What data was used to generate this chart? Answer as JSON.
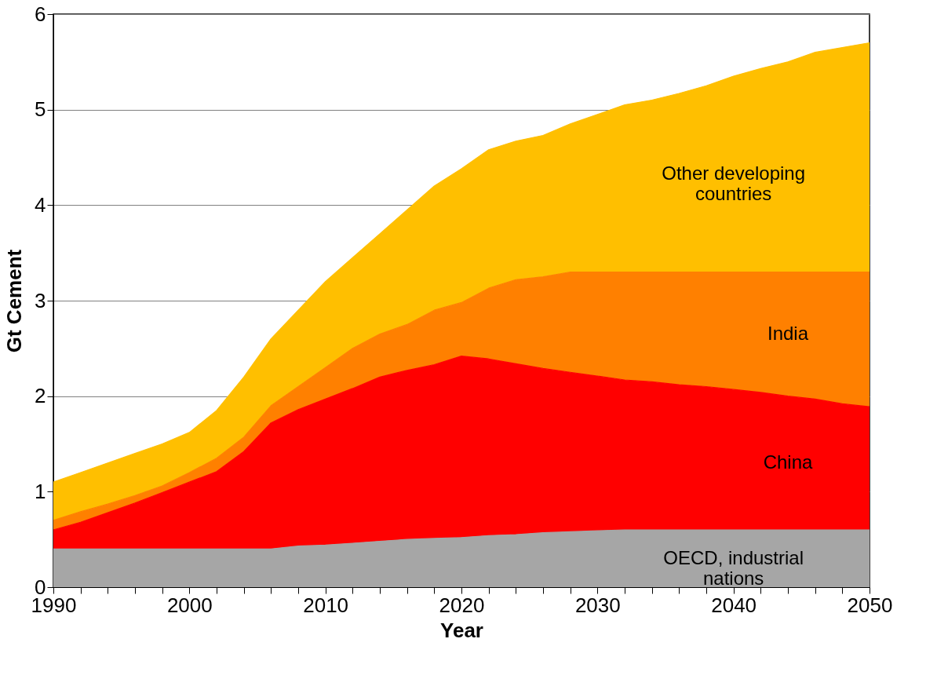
{
  "chart_data": {
    "type": "area",
    "stacked": true,
    "xlabel": "Year",
    "ylabel": "Gt Cement",
    "x": [
      1990,
      1992,
      1994,
      1996,
      1998,
      2000,
      2002,
      2004,
      2006,
      2008,
      2010,
      2012,
      2014,
      2016,
      2018,
      2020,
      2022,
      2024,
      2026,
      2028,
      2030,
      2032,
      2034,
      2036,
      2038,
      2040,
      2042,
      2044,
      2046,
      2048,
      2050
    ],
    "series": [
      {
        "name": "OECD, industrial nations",
        "color": "#a6a6a6",
        "values": [
          0.4,
          0.4,
          0.4,
          0.4,
          0.4,
          0.4,
          0.4,
          0.4,
          0.4,
          0.43,
          0.44,
          0.46,
          0.48,
          0.5,
          0.51,
          0.52,
          0.54,
          0.55,
          0.57,
          0.58,
          0.59,
          0.6,
          0.6,
          0.6,
          0.6,
          0.6,
          0.6,
          0.6,
          0.6,
          0.6,
          0.6
        ]
      },
      {
        "name": "China",
        "color": "#ff0000",
        "values": [
          0.2,
          0.28,
          0.38,
          0.48,
          0.59,
          0.7,
          0.81,
          1.02,
          1.32,
          1.43,
          1.53,
          1.62,
          1.72,
          1.77,
          1.82,
          1.9,
          1.85,
          1.79,
          1.72,
          1.67,
          1.62,
          1.57,
          1.55,
          1.52,
          1.5,
          1.47,
          1.44,
          1.4,
          1.37,
          1.32,
          1.29
        ]
      },
      {
        "name": "India",
        "color": "#ff8000",
        "values": [
          0.1,
          0.11,
          0.09,
          0.08,
          0.07,
          0.1,
          0.14,
          0.15,
          0.18,
          0.24,
          0.33,
          0.42,
          0.45,
          0.48,
          0.57,
          0.56,
          0.74,
          0.88,
          0.96,
          1.05,
          1.09,
          1.13,
          1.15,
          1.18,
          1.2,
          1.23,
          1.26,
          1.3,
          1.33,
          1.38,
          1.41
        ]
      },
      {
        "name": "Other developing countries",
        "color": "#ffbf00",
        "values": [
          0.4,
          0.41,
          0.43,
          0.44,
          0.44,
          0.42,
          0.5,
          0.63,
          0.7,
          0.8,
          0.9,
          0.95,
          1.05,
          1.2,
          1.3,
          1.4,
          1.45,
          1.45,
          1.48,
          1.55,
          1.65,
          1.75,
          1.8,
          1.87,
          1.95,
          2.05,
          2.13,
          2.2,
          2.3,
          2.35,
          2.4
        ]
      }
    ],
    "xlim": [
      1990,
      2050
    ],
    "xticks": [
      1990,
      {
        "value": 1992,
        "label": null
      },
      {
        "value": 1994,
        "label": null
      },
      {
        "value": 1996,
        "label": null
      },
      {
        "value": 1998,
        "label": null
      },
      2000,
      {
        "value": 2002,
        "label": null
      },
      {
        "value": 2004,
        "label": null
      },
      {
        "value": 2006,
        "label": null
      },
      {
        "value": 2008,
        "label": null
      },
      2010,
      {
        "value": 2012,
        "label": null
      },
      {
        "value": 2014,
        "label": null
      },
      {
        "value": 2016,
        "label": null
      },
      {
        "value": 2018,
        "label": null
      },
      2020,
      {
        "value": 2022,
        "label": null
      },
      {
        "value": 2024,
        "label": null
      },
      {
        "value": 2026,
        "label": null
      },
      {
        "value": 2028,
        "label": null
      },
      2030,
      {
        "value": 2032,
        "label": null
      },
      {
        "value": 2034,
        "label": null
      },
      {
        "value": 2036,
        "label": null
      },
      {
        "value": 2038,
        "label": null
      },
      2040,
      {
        "value": 2042,
        "label": null
      },
      {
        "value": 2044,
        "label": null
      },
      {
        "value": 2046,
        "label": null
      },
      {
        "value": 2048,
        "label": null
      },
      2050
    ],
    "ylim": [
      0,
      6
    ],
    "yticks": [
      0,
      1,
      2,
      3,
      4,
      5,
      6
    ],
    "grid": "y",
    "legend": false
  }
}
